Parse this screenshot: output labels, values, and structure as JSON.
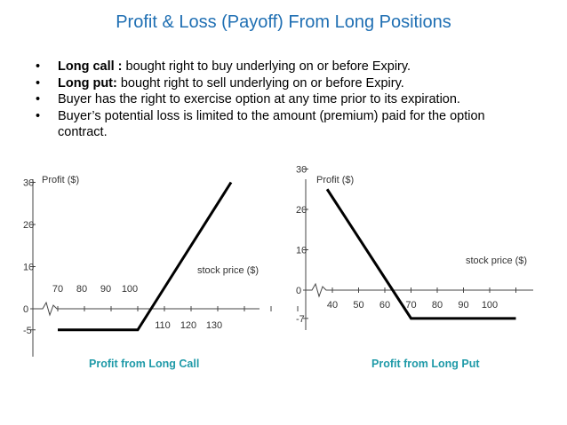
{
  "title": "Profit & Loss (Payoff) From Long Positions",
  "bullets": [
    {
      "bold": "Long call :",
      "text": " bought right to buy underlying on or before Expiry."
    },
    {
      "bold": "Long put:",
      "text": " bought right to sell underlying on or before Expiry."
    },
    {
      "bold": "",
      "text": "Buyer has the right to exercise option at any time prior to its expiration."
    },
    {
      "bold": "",
      "text": "Buyer’s potential loss is limited to the amount (premium) paid for the option contract."
    }
  ],
  "chart_data": [
    {
      "type": "line",
      "caption": "Profit from Long Call",
      "ylabel": "Profit ($)",
      "xlabel": "stock price ($)",
      "y_ticks": [
        "30",
        "20",
        "10",
        "0",
        "-5"
      ],
      "x_ticks_above": [
        "70",
        "80",
        "90",
        "100"
      ],
      "x_ticks_below": [
        "110",
        "120",
        "130"
      ],
      "series": [
        {
          "x": [
            70,
            100,
            105,
            135
          ],
          "y": [
            -5,
            -5,
            0,
            30
          ]
        }
      ],
      "accent_color": "#1f9aa8"
    },
    {
      "type": "line",
      "caption": "Profit from Long Put",
      "ylabel": "Profit ($)",
      "xlabel": "stock price ($)",
      "y_ticks": [
        "30",
        "20",
        "10",
        "0",
        "-7"
      ],
      "x_ticks": [
        "40",
        "50",
        "60",
        "70",
        "80",
        "90",
        "100"
      ],
      "series": [
        {
          "x": [
            38,
            63,
            70,
            110
          ],
          "y": [
            25,
            0,
            -7,
            -7
          ]
        }
      ],
      "accent_color": "#1f9aa8"
    }
  ]
}
